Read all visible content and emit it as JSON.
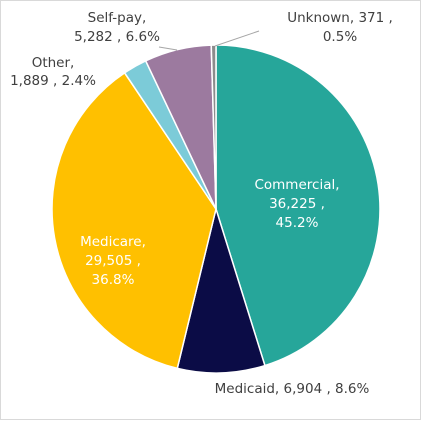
{
  "chart_data": {
    "type": "pie",
    "slices": [
      {
        "category": "Commercial",
        "value": 36225,
        "percent": "45.2%",
        "color": "#26A69A",
        "label_lines": [
          "Commercial,",
          "36,225 ,",
          "45.2%"
        ],
        "label_color": "#ffffff"
      },
      {
        "category": "Medicaid",
        "value": 6904,
        "percent": "8.6%",
        "color": "#0B0C46",
        "label_lines": [
          "Medicaid,  6,904 , 8.6%"
        ],
        "label_color": "#404040"
      },
      {
        "category": "Medicare",
        "value": 29505,
        "percent": "36.8%",
        "color": "#FFC000",
        "label_lines": [
          "Medicare,",
          "29,505 ,",
          "36.8%"
        ],
        "label_color": "#ffffff"
      },
      {
        "category": "Other",
        "value": 1889,
        "percent": "2.4%",
        "color": "#7CCBD8",
        "label_lines": [
          "Other,",
          "1,889 , 2.4%"
        ],
        "label_color": "#404040"
      },
      {
        "category": "Self-pay",
        "value": 5282,
        "percent": "6.6%",
        "color": "#9C7A9F",
        "label_lines": [
          "Self-pay,",
          "5,282 , 6.6%"
        ],
        "label_color": "#404040"
      },
      {
        "category": "Unknown",
        "value": 371,
        "percent": "0.5%",
        "color": "#8C8C8C",
        "label_lines": [
          "Unknown,  371 ,",
          "0.5%"
        ],
        "label_color": "#404040"
      }
    ]
  }
}
